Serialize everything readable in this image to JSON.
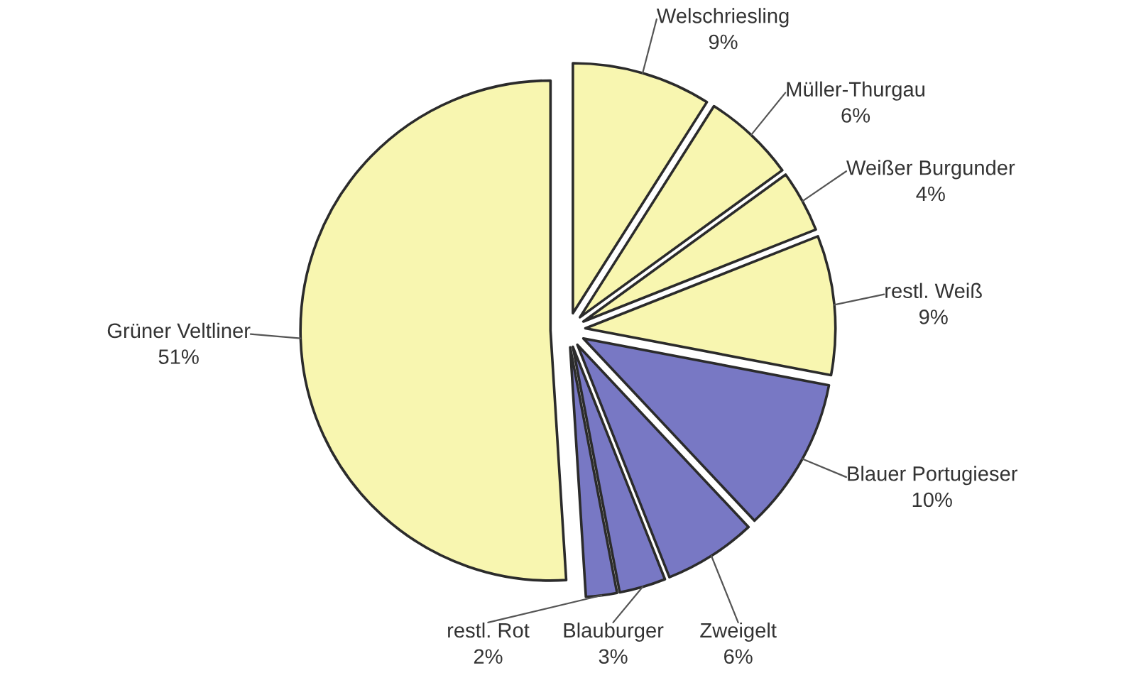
{
  "chart_data": {
    "type": "pie",
    "categories": [
      "Welschriesling",
      "Müller-Thurgau",
      "Weißer Burgunder",
      "restl. Weiß",
      "Blauer Portugieser",
      "Zweigelt",
      "Blauburger",
      "restl. Rot",
      "Grüner Veltliner"
    ],
    "values": [
      9,
      6,
      4,
      9,
      10,
      6,
      3,
      2,
      51
    ],
    "value_labels": [
      "9%",
      "6%",
      "4%",
      "9%",
      "10%",
      "6%",
      "3%",
      "2%",
      "51%"
    ],
    "colors": [
      "#f8f6b0",
      "#f8f6b0",
      "#f8f6b0",
      "#f8f6b0",
      "#7878c4",
      "#7878c4",
      "#7878c4",
      "#7878c4",
      "#f8f6b0"
    ]
  }
}
